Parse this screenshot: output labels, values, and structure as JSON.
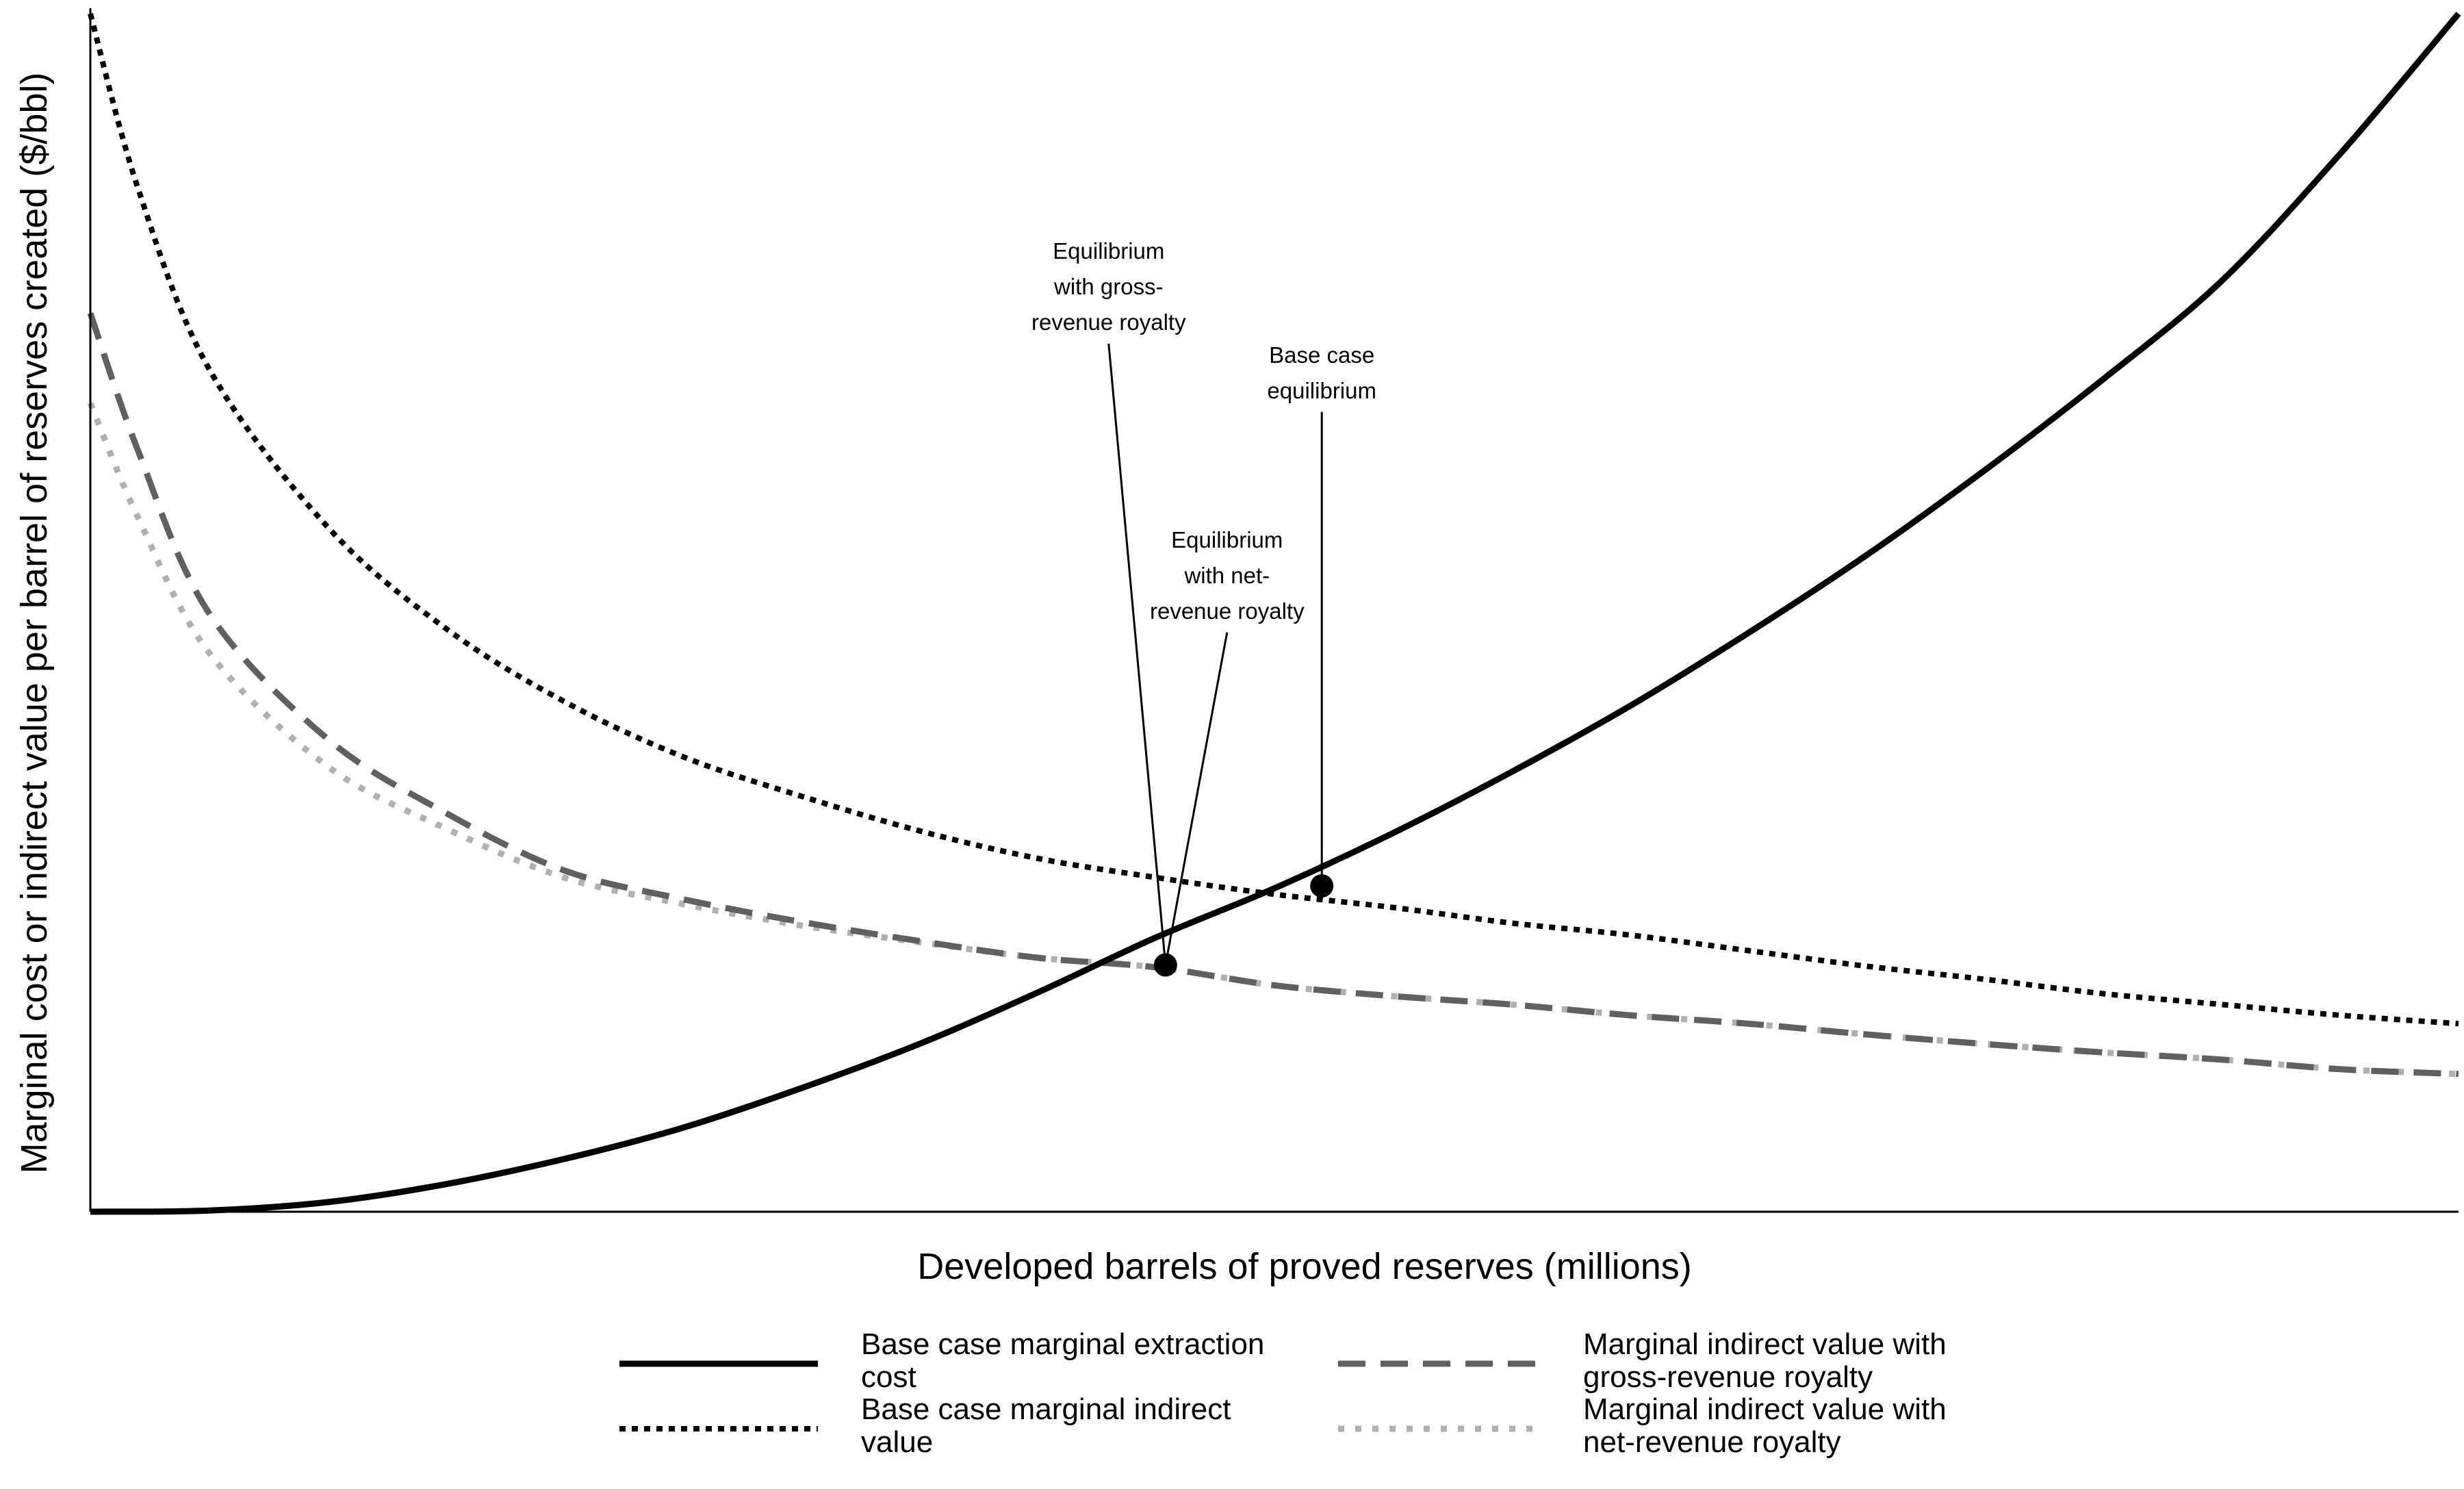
{
  "chart_data": {
    "type": "line",
    "title": "",
    "xlabel": "Developed barrels of proved reserves (millions)",
    "ylabel": "Marginal cost or indirect value per barrel of reserves created ($/bbl)",
    "xlim": [
      0,
      100
    ],
    "ylim": [
      0,
      100
    ],
    "grid": false,
    "ticks_shown": false,
    "legend_position": "bottom",
    "series": [
      {
        "name": "Base case marginal extraction cost",
        "style": "solid",
        "color": "#000000",
        "x": [
          0,
          5,
          10,
          15,
          20,
          25,
          30,
          35,
          40,
          45,
          50,
          55,
          60,
          65,
          70,
          75,
          80,
          85,
          90,
          95,
          100
        ],
        "y": [
          0,
          0.1,
          0.8,
          2.3,
          4.4,
          7.0,
          10.3,
          14.0,
          18.3,
          22.9,
          27.0,
          31.6,
          36.7,
          42.2,
          48.3,
          54.8,
          61.9,
          69.5,
          77.7,
          88.3,
          100
        ]
      },
      {
        "name": "Base case marginal indirect value",
        "style": "dotted",
        "color": "#000000",
        "x": [
          0,
          2,
          5,
          10,
          15,
          20,
          25,
          30,
          35,
          40,
          45,
          50,
          55,
          60,
          65,
          70,
          75,
          80,
          85,
          90,
          95,
          100
        ],
        "y": [
          100,
          85.5,
          70.4,
          57.2,
          48.7,
          42.6,
          38.0,
          34.7,
          31.8,
          29.5,
          27.9,
          26.5,
          25.4,
          24.1,
          23.1,
          21.8,
          20.5,
          19.4,
          18.2,
          17.3,
          16.4,
          15.7
        ]
      },
      {
        "name": "Marginal indirect value with gross-revenue royalty",
        "style": "dashed",
        "color": "#606060",
        "x": [
          0,
          2,
          5,
          10,
          15,
          20,
          25,
          30,
          35,
          40,
          45,
          50,
          55,
          60,
          65,
          70,
          75,
          80,
          85,
          90,
          95,
          100
        ],
        "y": [
          75,
          63.6,
          50.0,
          39.5,
          33.3,
          28.5,
          26.1,
          24.2,
          22.6,
          21.2,
          20.4,
          18.9,
          18.0,
          17.3,
          16.4,
          15.7,
          14.8,
          14.0,
          13.3,
          12.7,
          11.9,
          11.5
        ]
      },
      {
        "name": "Marginal indirect value with net-revenue royalty",
        "style": "dotted",
        "color": "#b0b0b0",
        "x": [
          0,
          2,
          5,
          10,
          15,
          20,
          25,
          30,
          35,
          40,
          45,
          50,
          55,
          60,
          65,
          70,
          75,
          80,
          85,
          90,
          95,
          100
        ],
        "y": [
          67.5,
          58.0,
          46.7,
          37.2,
          32.0,
          27.9,
          25.7,
          23.9,
          22.5,
          21.2,
          20.4,
          18.9,
          18.0,
          17.3,
          16.4,
          15.7,
          14.8,
          14.0,
          13.3,
          12.7,
          11.9,
          11.5
        ]
      }
    ],
    "points": [
      {
        "name": "Base case equilibrium",
        "x": 52,
        "y": 27.2
      },
      {
        "name": "Equilibrium with royalty",
        "x": 45.4,
        "y": 20.6
      }
    ],
    "annotations": [
      {
        "lines": [
          "Equilibrium",
          "with gross-",
          "revenue royalty"
        ],
        "x": 43,
        "y": 73.6,
        "target": [
          45.4,
          20.6
        ]
      },
      {
        "lines": [
          "Base case",
          "equilibrium"
        ],
        "x": 52,
        "y": 67.9,
        "target": [
          52,
          27.2
        ]
      },
      {
        "lines": [
          "Equilibrium",
          "with net-",
          "revenue royalty"
        ],
        "x": 48,
        "y": 49.5,
        "target": [
          45.4,
          20.6
        ]
      }
    ]
  }
}
